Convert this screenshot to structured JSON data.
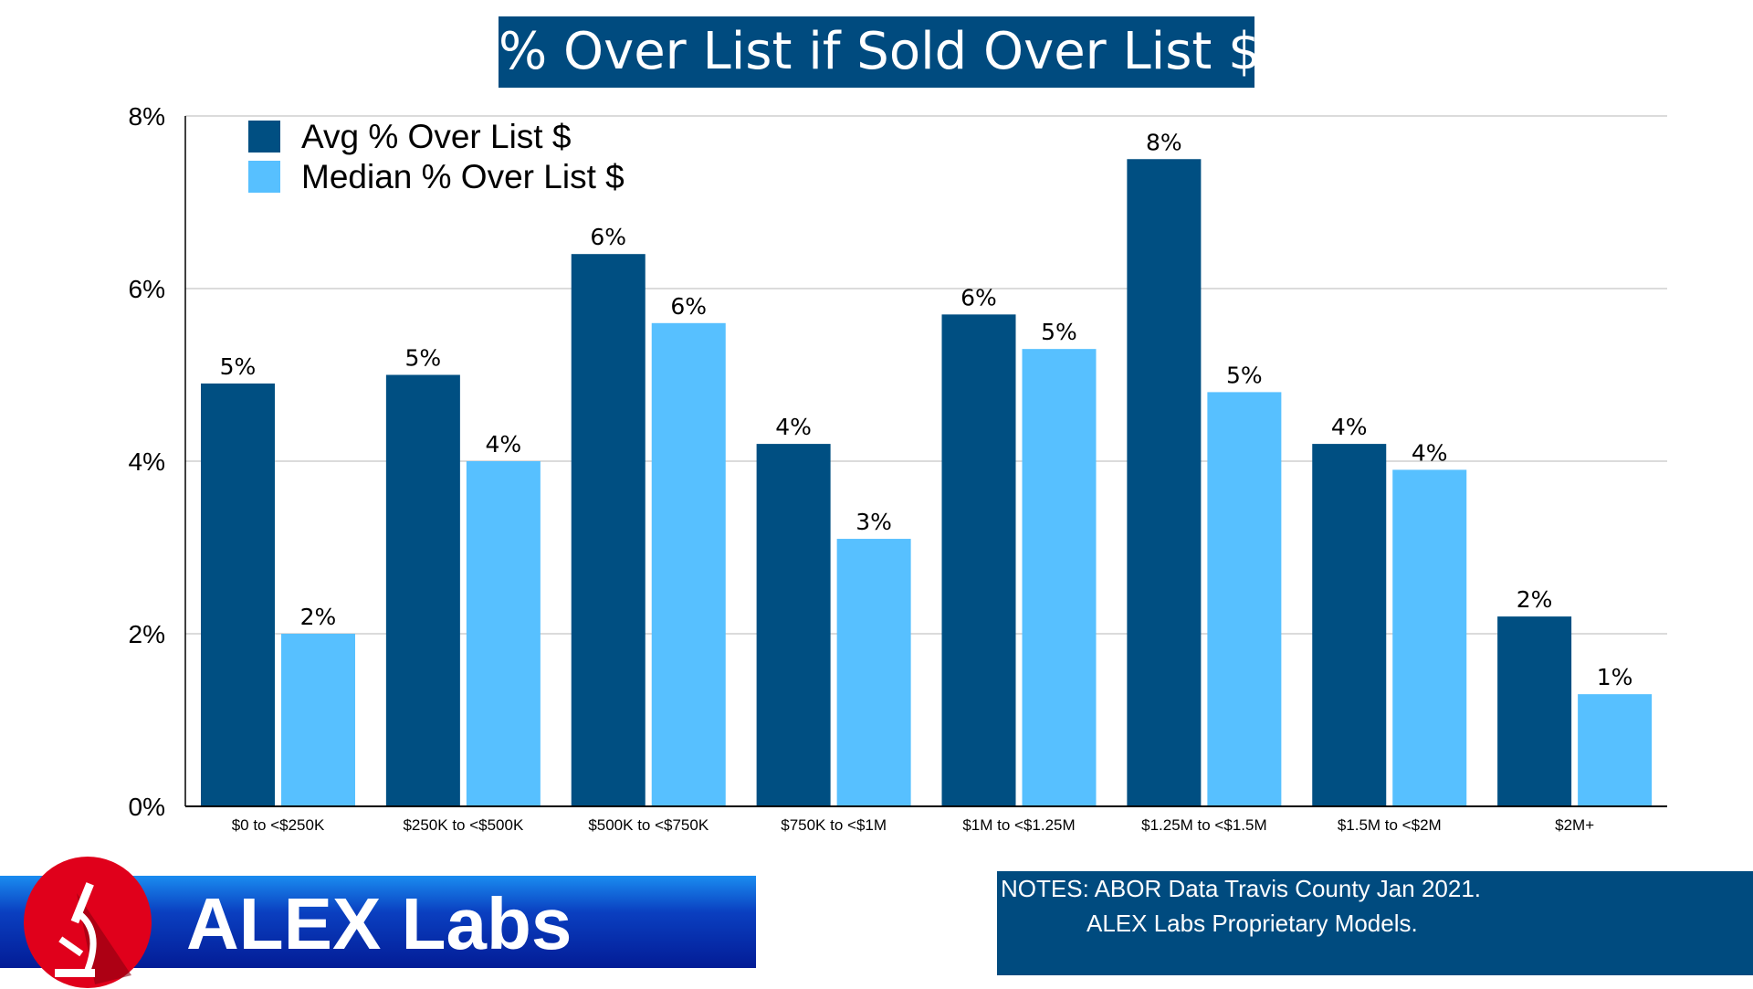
{
  "chart_data": {
    "type": "bar",
    "title": "% Over List if Sold Over List $",
    "categories": [
      "$0 to <$250K",
      "$250K to <$500K",
      "$500K to <$750K",
      "$750K to <$1M",
      "$1M to <$1.25M",
      "$1.25M to <$1.5M",
      "$1.5M to <$2M",
      "$2M+"
    ],
    "series": [
      {
        "name": "Avg % Over List $",
        "color": "#004f82",
        "values": [
          4.9,
          5.0,
          6.4,
          4.2,
          5.7,
          7.5,
          4.2,
          2.2
        ],
        "labels": [
          "5%",
          "5%",
          "6%",
          "4%",
          "6%",
          "8%",
          "4%",
          "2%"
        ]
      },
      {
        "name": "Median % Over List $",
        "color": "#57c0ff",
        "values": [
          2.0,
          4.0,
          5.6,
          3.1,
          5.3,
          4.8,
          3.9,
          1.3
        ],
        "labels": [
          "2%",
          "4%",
          "6%",
          "3%",
          "5%",
          "5%",
          "4%",
          "1%"
        ]
      }
    ],
    "yticks": [
      "0%",
      "2%",
      "4%",
      "6%",
      "8%"
    ],
    "ytick_values": [
      0,
      2,
      4,
      6,
      8
    ],
    "ylim": [
      0,
      8
    ],
    "xlabel": "",
    "ylabel": "",
    "grid": true,
    "legend_position": "top-left"
  },
  "branding": {
    "name": "ALEX Labs",
    "icon": "microscope-icon",
    "banner_color": "#031c96",
    "circle_color": "#e0001b"
  },
  "notes": {
    "line1": "NOTES: ABOR Data Travis County Jan 2021.",
    "line2": "ALEX Labs Proprietary Models."
  }
}
